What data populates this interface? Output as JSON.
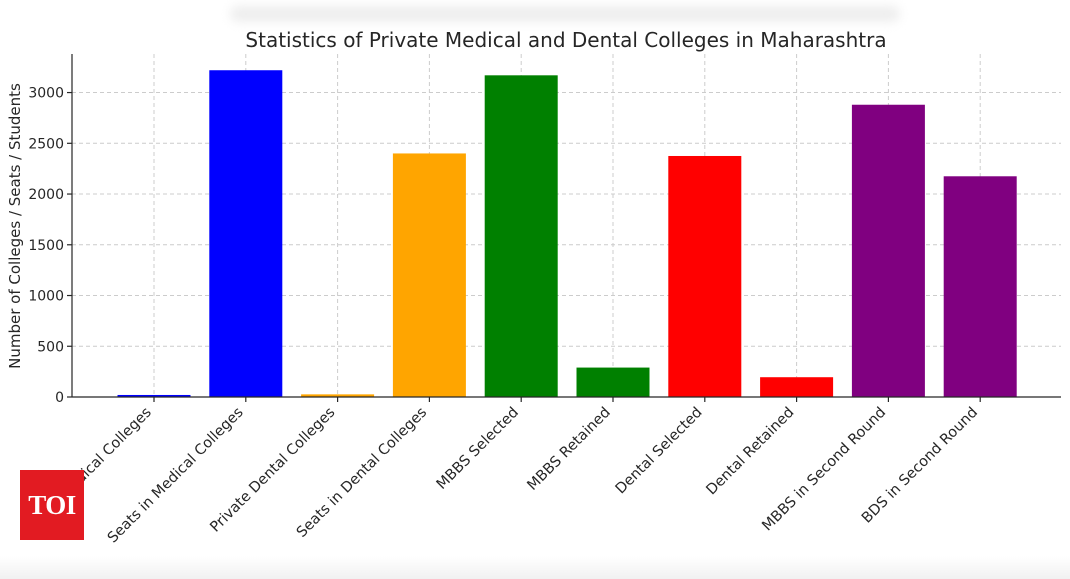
{
  "chart_data": {
    "type": "bar",
    "title": "Statistics of Private Medical and Dental Colleges in Maharashtra",
    "xlabel": "",
    "ylabel": "Number of Colleges / Seats / Students",
    "ylim": [
      0,
      3380
    ],
    "yticks": [
      0,
      500,
      1000,
      1500,
      2000,
      2500,
      3000
    ],
    "grid": true,
    "categories": [
      "Private Medical Colleges",
      "Seats in Medical Colleges",
      "Private Dental Colleges",
      "Seats in Dental Colleges",
      "MBBS Selected",
      "MBBS Retained",
      "Dental Selected",
      "Dental Retained",
      "MBBS in Second Round",
      "BDS in Second Round"
    ],
    "values": [
      20,
      3220,
      26,
      2400,
      3170,
      290,
      2375,
      195,
      2880,
      2175
    ],
    "colors": [
      "#0000ff",
      "#0000ff",
      "#ffa500",
      "#ffa500",
      "#008000",
      "#008000",
      "#ff0000",
      "#ff0000",
      "#800080",
      "#800080"
    ]
  },
  "logo": {
    "text": "TOI",
    "color": "#e21b22"
  }
}
